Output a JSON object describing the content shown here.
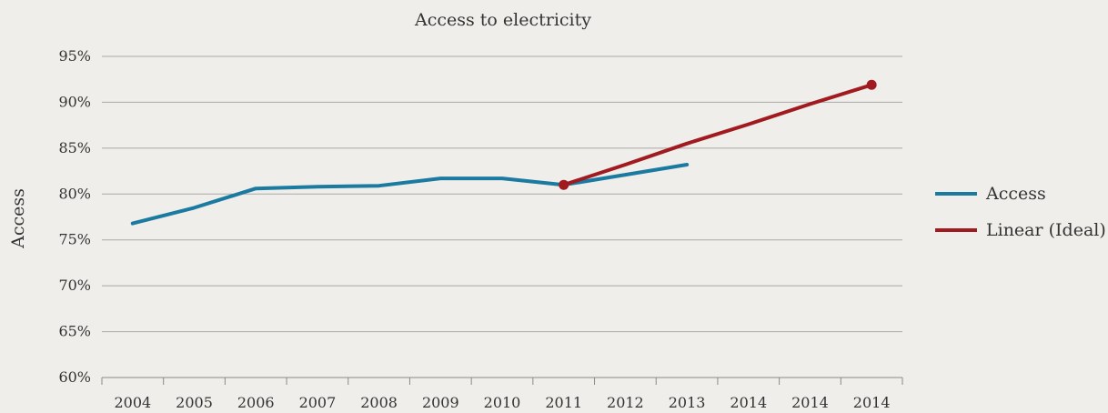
{
  "chart_data": {
    "type": "line",
    "title": "Access to electricity",
    "xlabel": "",
    "ylabel": "Access",
    "categories": [
      "2004",
      "2005",
      "2006",
      "2007",
      "2008",
      "2009",
      "2010",
      "2011",
      "2012",
      "2013",
      "2014",
      "2014",
      "2014"
    ],
    "ylim": [
      60,
      95
    ],
    "yticks": [
      60,
      65,
      70,
      75,
      80,
      85,
      90,
      95
    ],
    "ytick_labels": [
      "60%",
      "65%",
      "70%",
      "75%",
      "80%",
      "85%",
      "90%",
      "95%"
    ],
    "grid": true,
    "legend_position": "right",
    "series": [
      {
        "name": "Access",
        "color": "#1a7aa0",
        "marker": false,
        "values": [
          76.8,
          78.5,
          80.6,
          80.8,
          80.9,
          81.7,
          81.7,
          81.0,
          82.1,
          83.2,
          null,
          null,
          null
        ]
      },
      {
        "name": "Linear (Ideal)",
        "color": "#a01a1f",
        "marker": true,
        "values": [
          null,
          null,
          null,
          null,
          null,
          null,
          null,
          81.0,
          83.2,
          85.5,
          87.6,
          89.8,
          91.9
        ]
      }
    ]
  }
}
